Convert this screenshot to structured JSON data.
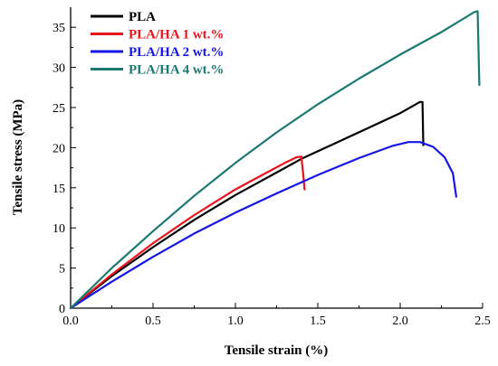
{
  "chart_data": {
    "type": "line",
    "title": "",
    "xlabel": "Tensile strain (%)",
    "ylabel": "Tensile stress (MPa)",
    "xlim": [
      0,
      2.5
    ],
    "ylim": [
      0,
      37.5
    ],
    "xticks": [
      0.0,
      0.5,
      1.0,
      1.5,
      2.0,
      2.5
    ],
    "xtick_labels": [
      "0.0",
      "0.5",
      "1.0",
      "1.5",
      "2.0",
      "2.5"
    ],
    "yticks": [
      0,
      5,
      10,
      15,
      20,
      25,
      30,
      35
    ],
    "ytick_labels": [
      "0",
      "5",
      "10",
      "15",
      "20",
      "25",
      "30",
      "35"
    ],
    "grid": false,
    "legend_position": "top-left",
    "series": [
      {
        "name": "PLA",
        "color": "#000000",
        "x": [
          0,
          0.25,
          0.5,
          0.75,
          1.0,
          1.25,
          1.4,
          1.6,
          1.8,
          2.0,
          2.12,
          2.135,
          2.14
        ],
        "y": [
          0,
          4.0,
          7.6,
          11.0,
          14.1,
          16.9,
          18.6,
          20.5,
          22.4,
          24.3,
          25.7,
          25.7,
          20.3
        ]
      },
      {
        "name": "PLA/HA 1 wt.%",
        "color": "#e8141b",
        "x": [
          0,
          0.25,
          0.5,
          0.75,
          1.0,
          1.2,
          1.3,
          1.37,
          1.4,
          1.41,
          1.42
        ],
        "y": [
          0,
          4.2,
          8.1,
          11.6,
          14.8,
          17.0,
          18.1,
          18.8,
          18.9,
          17.0,
          14.8
        ]
      },
      {
        "name": "PLA/HA 2 wt.%",
        "color": "#1515e6",
        "x": [
          0,
          0.25,
          0.5,
          0.75,
          1.0,
          1.25,
          1.5,
          1.75,
          1.95,
          2.05,
          2.12,
          2.2,
          2.27,
          2.32,
          2.34
        ],
        "y": [
          0,
          3.3,
          6.4,
          9.3,
          11.9,
          14.3,
          16.6,
          18.7,
          20.2,
          20.7,
          20.7,
          20.1,
          18.8,
          16.8,
          13.9
        ]
      },
      {
        "name": "PLA/HA 4 wt.%",
        "color": "#1a7a70",
        "x": [
          0,
          0.25,
          0.5,
          0.75,
          1.0,
          1.25,
          1.5,
          1.75,
          2.0,
          2.25,
          2.45,
          2.47,
          2.48
        ],
        "y": [
          0,
          5.0,
          9.6,
          14.0,
          18.1,
          21.9,
          25.4,
          28.6,
          31.6,
          34.4,
          36.9,
          37.0,
          27.8
        ]
      }
    ]
  }
}
